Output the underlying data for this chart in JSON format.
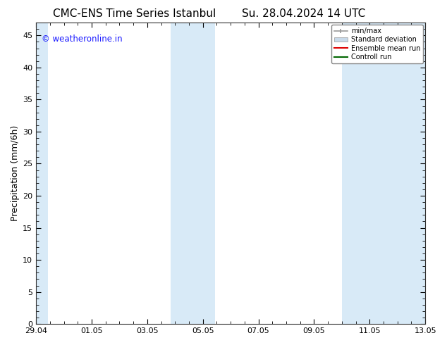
{
  "title_left": "CMC-ENS Time Series Istanbul",
  "title_right": "Su. 28.04.2024 14 UTC",
  "ylabel": "Precipitation (mm/6h)",
  "xlabel_ticks": [
    "29.04",
    "01.05",
    "03.05",
    "05.05",
    "07.05",
    "09.05",
    "11.05",
    "13.05"
  ],
  "tick_x_positions": [
    0,
    2,
    4,
    6,
    8,
    10,
    12,
    14
  ],
  "xlim": [
    0,
    14
  ],
  "ylim": [
    0,
    47
  ],
  "yticks": [
    0,
    5,
    10,
    15,
    20,
    25,
    30,
    35,
    40,
    45
  ],
  "background_color": "#ffffff",
  "plot_bg_color": "#ffffff",
  "shaded_bands": [
    {
      "x_start": 0.0,
      "x_end": 0.43,
      "color": "#d8eaf7"
    },
    {
      "x_start": 4.85,
      "x_end": 5.43,
      "color": "#d8eaf7"
    },
    {
      "x_start": 5.43,
      "x_end": 6.43,
      "color": "#d8eaf7"
    },
    {
      "x_start": 11.0,
      "x_end": 11.85,
      "color": "#d8eaf7"
    },
    {
      "x_start": 11.85,
      "x_end": 14.0,
      "color": "#d8eaf7"
    }
  ],
  "legend_labels": [
    "min/max",
    "Standard deviation",
    "Ensemble mean run",
    "Controll run"
  ],
  "legend_line_colors": [
    "#aaaaaa",
    "#c8daea",
    "#dd0000",
    "#006600"
  ],
  "watermark_text": "© weatheronline.in",
  "watermark_color": "#1a1aff",
  "title_fontsize": 11,
  "tick_fontsize": 8,
  "ylabel_fontsize": 9
}
